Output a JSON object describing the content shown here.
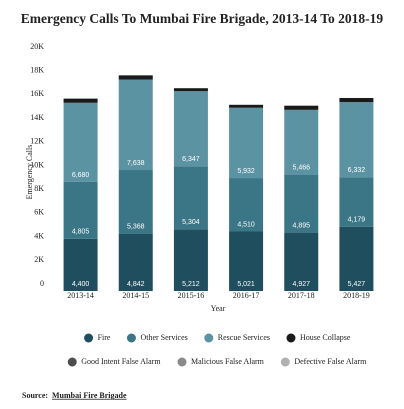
{
  "chart_data": {
    "type": "stacked_bar",
    "title": "Emergency Calls To Mumbai Fire Brigade, 2013-14 To 2018-19",
    "x_label": "Year",
    "y_label": "Emergency Calls",
    "categories": [
      "2013-14",
      "2014-15",
      "2015-16",
      "2016-17",
      "2017-18",
      "2018-19"
    ],
    "series": [
      {
        "name": "Fire",
        "color": "#1f4e5f",
        "values": [
          4400,
          4842,
          5212,
          5021,
          4927,
          5427
        ],
        "value_labels": [
          "4,400",
          "4,842",
          "5,212",
          "5,021",
          "4,927",
          "5,427"
        ]
      },
      {
        "name": "Other Services",
        "color": "#3b7686",
        "values": [
          4805,
          5368,
          5304,
          4510,
          4895,
          4179
        ],
        "value_labels": [
          "4,805",
          "5,368",
          "5,304",
          "4,510",
          "4,895",
          "4,179"
        ]
      },
      {
        "name": "Rescue Services",
        "color": "#5b93a3",
        "values": [
          6680,
          7638,
          6347,
          5932,
          5466,
          6332
        ],
        "value_labels": [
          "6,680",
          "7,638",
          "6,347",
          "5,932",
          "5,466",
          "6,332"
        ]
      },
      {
        "name": "House Collapse",
        "color": "#1a1a1a",
        "values": [
          350,
          350,
          250,
          250,
          350,
          350
        ]
      },
      {
        "name": "Good Intent False Alarm",
        "color": "#4d4d4d",
        "values": [
          0,
          0,
          0,
          0,
          0,
          0
        ]
      },
      {
        "name": "Malicious False Alarm",
        "color": "#8a8a8a",
        "values": [
          0,
          0,
          0,
          0,
          0,
          0
        ]
      },
      {
        "name": "Defective False Alarm",
        "color": "#b0b0b0",
        "values": [
          0,
          0,
          0,
          0,
          0,
          0
        ]
      }
    ],
    "ylim": [
      0,
      20000
    ],
    "yticks": [
      {
        "value": 0,
        "label": "0"
      },
      {
        "value": 2000,
        "label": "2K"
      },
      {
        "value": 4000,
        "label": "4K"
      },
      {
        "value": 6000,
        "label": "6K"
      },
      {
        "value": 8000,
        "label": "8K"
      },
      {
        "value": 10000,
        "label": "10K"
      },
      {
        "value": 12000,
        "label": "12K"
      },
      {
        "value": 14000,
        "label": "14K"
      },
      {
        "value": 16000,
        "label": "16K"
      },
      {
        "value": 18000,
        "label": "18K"
      },
      {
        "value": 20000,
        "label": "20K"
      }
    ],
    "grid": false
  },
  "source": {
    "label": "Source:",
    "text": "Mumbai Fire Brigade"
  }
}
